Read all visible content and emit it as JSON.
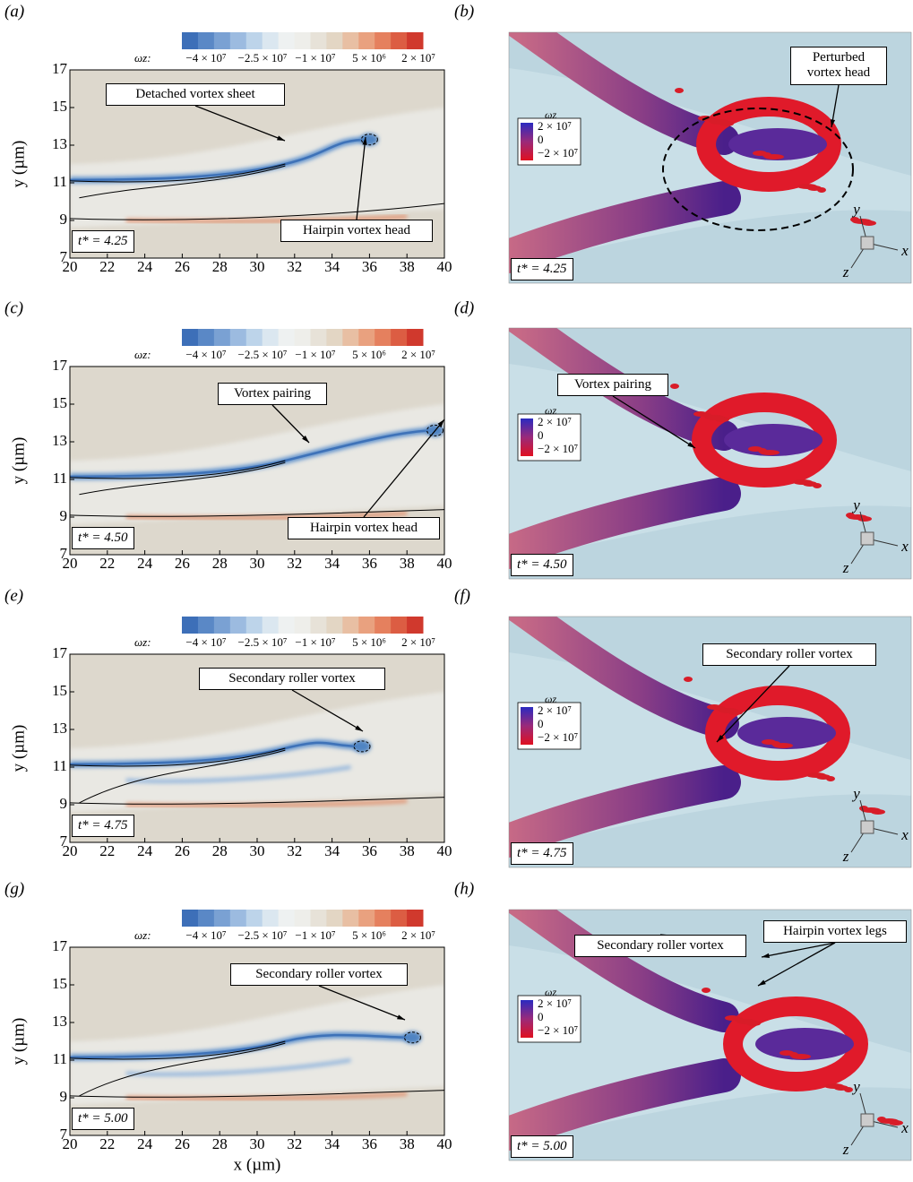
{
  "panels": [
    {
      "label": "(a)",
      "time": "t* = 4.25",
      "annotations": [
        "Detached vortex sheet",
        "Hairpin vortex head"
      ]
    },
    {
      "label": "(b)",
      "time": "t* = 4.25",
      "annotations": [
        "Perturbed vortex head"
      ]
    },
    {
      "label": "(c)",
      "time": "t* = 4.50",
      "annotations": [
        "Vortex pairing",
        "Hairpin vortex head"
      ]
    },
    {
      "label": "(d)",
      "time": "t* = 4.50",
      "annotations": [
        "Vortex pairing"
      ]
    },
    {
      "label": "(e)",
      "time": "t* = 4.75",
      "annotations": [
        "Secondary roller vortex"
      ]
    },
    {
      "label": "(f)",
      "time": "t* = 4.75",
      "annotations": [
        "Secondary roller vortex"
      ]
    },
    {
      "label": "(g)",
      "time": "t* = 5.00",
      "annotations": [
        "Secondary roller vortex"
      ]
    },
    {
      "label": "(h)",
      "time": "t* = 5.00",
      "annotations": [
        "Secondary roller vortex",
        "Hairpin vortex legs"
      ]
    }
  ],
  "contour": {
    "xlim": [
      20,
      40
    ],
    "ylim": [
      7,
      17
    ],
    "xticks": [
      20,
      22,
      24,
      26,
      28,
      30,
      32,
      34,
      36,
      38,
      40
    ],
    "yticks": [
      7,
      9,
      11,
      13,
      15,
      17
    ],
    "xlabel": "x (µm)",
    "ylabel": "y (µm)",
    "colorbar_symbol": "ωz:",
    "colorbar_labels": [
      "−4 × 10⁷",
      "−2.5 × 10⁷",
      "−1 × 10⁷",
      "5 × 10⁶",
      "2 × 10⁷"
    ]
  },
  "render": {
    "legend_symbol": "ωz",
    "legend_labels": [
      "2 × 10⁷",
      "0",
      "−2 × 10⁷"
    ],
    "axes": [
      "y",
      "x",
      "z"
    ]
  }
}
